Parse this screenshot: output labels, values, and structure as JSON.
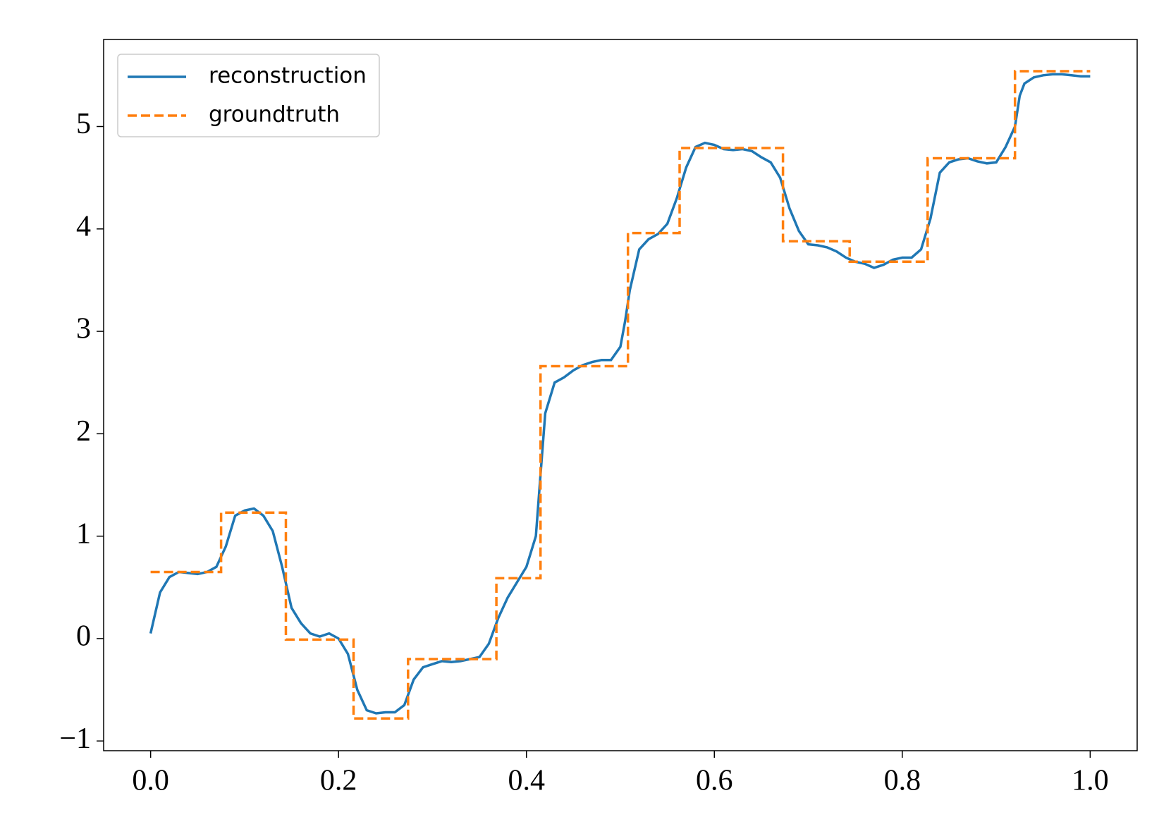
{
  "chart_data": {
    "type": "line",
    "series": [
      {
        "name": "reconstruction",
        "color": "#1f77b4",
        "dash": false,
        "x": [
          0,
          0.01,
          0.02,
          0.03,
          0.04,
          0.05,
          0.06,
          0.07,
          0.08,
          0.09,
          0.1,
          0.11,
          0.12,
          0.13,
          0.14,
          0.15,
          0.16,
          0.17,
          0.18,
          0.19,
          0.2,
          0.21,
          0.22,
          0.23,
          0.24,
          0.25,
          0.26,
          0.27,
          0.28,
          0.29,
          0.3,
          0.31,
          0.32,
          0.33,
          0.34,
          0.35,
          0.36,
          0.37,
          0.38,
          0.39,
          0.4,
          0.41,
          0.415,
          0.42,
          0.43,
          0.44,
          0.45,
          0.46,
          0.47,
          0.48,
          0.49,
          0.5,
          0.505,
          0.51,
          0.52,
          0.53,
          0.54,
          0.55,
          0.56,
          0.57,
          0.58,
          0.59,
          0.6,
          0.61,
          0.62,
          0.63,
          0.64,
          0.65,
          0.66,
          0.67,
          0.68,
          0.69,
          0.7,
          0.71,
          0.72,
          0.73,
          0.74,
          0.75,
          0.76,
          0.77,
          0.78,
          0.79,
          0.8,
          0.81,
          0.82,
          0.83,
          0.84,
          0.85,
          0.86,
          0.87,
          0.88,
          0.89,
          0.9,
          0.91,
          0.92,
          0.925,
          0.93,
          0.94,
          0.95,
          0.96,
          0.97,
          0.98,
          0.99,
          1.0
        ],
        "values": [
          0.05,
          0.45,
          0.6,
          0.65,
          0.64,
          0.63,
          0.65,
          0.7,
          0.9,
          1.2,
          1.25,
          1.27,
          1.2,
          1.05,
          0.7,
          0.3,
          0.15,
          0.05,
          0.02,
          0.05,
          0.0,
          -0.15,
          -0.5,
          -0.7,
          -0.73,
          -0.72,
          -0.72,
          -0.65,
          -0.4,
          -0.28,
          -0.25,
          -0.22,
          -0.23,
          -0.22,
          -0.2,
          -0.18,
          -0.05,
          0.2,
          0.4,
          0.55,
          0.7,
          1.0,
          1.6,
          2.2,
          2.5,
          2.55,
          2.62,
          2.67,
          2.7,
          2.72,
          2.72,
          2.85,
          3.1,
          3.4,
          3.8,
          3.9,
          3.95,
          4.05,
          4.3,
          4.6,
          4.8,
          4.84,
          4.82,
          4.78,
          4.77,
          4.78,
          4.76,
          4.7,
          4.65,
          4.5,
          4.2,
          3.98,
          3.85,
          3.84,
          3.82,
          3.78,
          3.72,
          3.68,
          3.66,
          3.62,
          3.65,
          3.7,
          3.72,
          3.72,
          3.8,
          4.1,
          4.55,
          4.65,
          4.68,
          4.69,
          4.66,
          4.64,
          4.65,
          4.8,
          5.0,
          5.3,
          5.42,
          5.48,
          5.5,
          5.51,
          5.51,
          5.5,
          5.49,
          5.49
        ]
      },
      {
        "name": "groundtruth",
        "color": "#ff7f0e",
        "dash": true,
        "x": [
          0,
          0.075,
          0.075,
          0.144,
          0.144,
          0.216,
          0.216,
          0.274,
          0.274,
          0.368,
          0.368,
          0.415,
          0.415,
          0.508,
          0.508,
          0.563,
          0.563,
          0.673,
          0.673,
          0.744,
          0.744,
          0.827,
          0.827,
          0.92,
          0.92,
          1.0
        ],
        "values": [
          0.65,
          0.65,
          1.23,
          1.23,
          -0.01,
          -0.01,
          -0.78,
          -0.78,
          -0.2,
          -0.2,
          0.59,
          0.59,
          2.66,
          2.66,
          3.96,
          3.96,
          4.79,
          4.79,
          3.88,
          3.88,
          3.68,
          3.68,
          4.69,
          4.69,
          5.54,
          5.54
        ]
      }
    ],
    "xlim": [
      -0.05,
      1.05
    ],
    "xticks": [
      {
        "value": 0,
        "label": "0.0"
      },
      {
        "value": 0.2,
        "label": "0.2"
      },
      {
        "value": 0.4,
        "label": "0.4"
      },
      {
        "value": 0.6,
        "label": "0.6"
      },
      {
        "value": 0.8,
        "label": "0.8"
      },
      {
        "value": 1,
        "label": "1.0"
      }
    ],
    "ylim": [
      -1.095,
      5.85
    ],
    "yticks": [
      {
        "value": -1,
        "label": "−1"
      },
      0,
      1,
      2,
      3,
      4,
      5
    ],
    "grid": false,
    "legend": "upper left"
  }
}
